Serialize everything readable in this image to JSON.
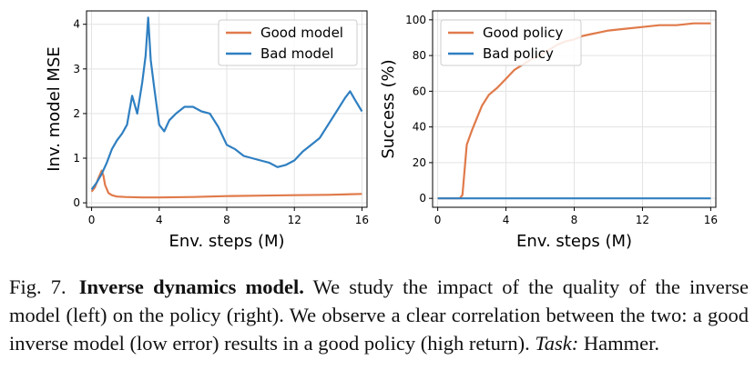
{
  "chart_data": [
    {
      "type": "line",
      "xlabel": "Env. steps (M)",
      "ylabel": "Inv. model MSE",
      "xlim": [
        -0.3,
        16.3
      ],
      "ylim": [
        -0.1,
        4.3
      ],
      "xticks": [
        0,
        4,
        8,
        12,
        16
      ],
      "xtick_labels": [
        "0",
        "4",
        "8",
        "12",
        "16"
      ],
      "yticks": [
        0,
        1,
        2,
        3,
        4
      ],
      "ytick_labels": [
        "0",
        "1",
        "2",
        "3",
        "4"
      ],
      "legend_position": "top-right",
      "series": [
        {
          "name": "Good model",
          "color": "#e07a4a",
          "x": [
            0,
            0.2,
            0.4,
            0.6,
            0.7,
            0.8,
            1.0,
            1.2,
            1.5,
            2,
            3,
            4,
            6,
            8,
            10,
            12,
            14,
            16
          ],
          "y": [
            0.25,
            0.35,
            0.55,
            0.72,
            0.6,
            0.4,
            0.22,
            0.17,
            0.14,
            0.13,
            0.12,
            0.12,
            0.13,
            0.15,
            0.16,
            0.17,
            0.18,
            0.2
          ]
        },
        {
          "name": "Bad model",
          "color": "#2f7fc1",
          "x": [
            0,
            0.3,
            0.6,
            0.9,
            1.2,
            1.5,
            1.8,
            2.1,
            2.4,
            2.7,
            3.0,
            3.2,
            3.35,
            3.5,
            3.7,
            4.0,
            4.3,
            4.6,
            5.0,
            5.5,
            6.0,
            6.5,
            7.0,
            7.5,
            8.0,
            8.5,
            9.0,
            9.5,
            10.0,
            10.5,
            11.0,
            11.5,
            12.0,
            12.5,
            13.0,
            13.5,
            14.0,
            14.5,
            15.0,
            15.3,
            15.6,
            16.0
          ],
          "y": [
            0.3,
            0.45,
            0.65,
            0.9,
            1.2,
            1.4,
            1.55,
            1.75,
            2.4,
            2.0,
            2.7,
            3.3,
            4.15,
            3.2,
            2.6,
            1.75,
            1.6,
            1.85,
            2.0,
            2.15,
            2.15,
            2.05,
            2.0,
            1.7,
            1.3,
            1.2,
            1.05,
            1.0,
            0.95,
            0.9,
            0.8,
            0.85,
            0.95,
            1.15,
            1.3,
            1.45,
            1.75,
            2.05,
            2.35,
            2.5,
            2.3,
            2.05
          ]
        }
      ]
    },
    {
      "type": "line",
      "xlabel": "Env. steps (M)",
      "ylabel": "Success (%)",
      "xlim": [
        -0.3,
        16.3
      ],
      "ylim": [
        -5,
        105
      ],
      "xticks": [
        0,
        4,
        8,
        12,
        16
      ],
      "xtick_labels": [
        "0",
        "4",
        "8",
        "12",
        "16"
      ],
      "yticks": [
        0,
        20,
        40,
        60,
        80,
        100
      ],
      "ytick_labels": [
        "0",
        "20",
        "40",
        "60",
        "80",
        "100"
      ],
      "legend_position": "top-left",
      "series": [
        {
          "name": "Good policy",
          "color": "#e07a4a",
          "x": [
            0,
            1.3,
            1.45,
            1.7,
            2.0,
            2.3,
            2.6,
            3.0,
            3.5,
            4.0,
            4.5,
            5.0,
            5.5,
            6.0,
            6.5,
            7.0,
            7.5,
            8.0,
            8.5,
            9.0,
            9.5,
            10,
            11,
            12,
            13,
            14,
            15,
            16
          ],
          "y": [
            0,
            0,
            2,
            30,
            38,
            45,
            52,
            58,
            62,
            67,
            72,
            75,
            78,
            80,
            83,
            86,
            88,
            89,
            91,
            92,
            93,
            94,
            95,
            96,
            97,
            97,
            98,
            98
          ]
        },
        {
          "name": "Bad policy",
          "color": "#2f7fc1",
          "x": [
            0,
            16
          ],
          "y": [
            0,
            0
          ]
        }
      ]
    }
  ],
  "caption": {
    "fig_label": "Fig. 7.",
    "bold": "Inverse dynamics model.",
    "text1": " We study the impact of the quality of the inverse model (left) on the policy (right). We observe a clear correlation between the two: a good inverse model (low error) results in a good policy (high return). ",
    "task_label": "Task:",
    "task_value": " Hammer."
  }
}
